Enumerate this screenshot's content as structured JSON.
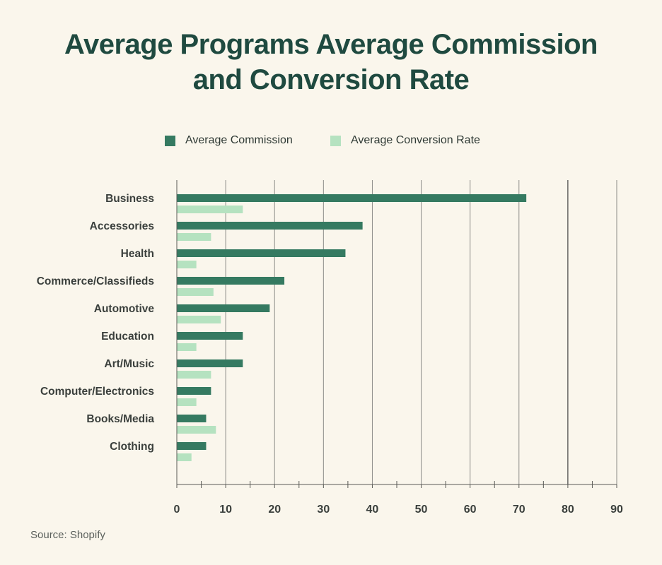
{
  "title_lines": [
    "Average Programs Average Commission",
    "and Conversion Rate"
  ],
  "source": "Source: Shopify",
  "legend": [
    {
      "label": "Average Commission",
      "color": "#357a61"
    },
    {
      "label": "Average Conversion Rate",
      "color": "#b5e2c0"
    }
  ],
  "chart_data": {
    "type": "bar",
    "orientation": "horizontal",
    "title": "Average Programs Average Commission and Conversion Rate",
    "categories": [
      "Business",
      "Accessories",
      "Health",
      "Commerce/Classifieds",
      "Automotive",
      "Education",
      "Art/Music",
      "Computer/Electronics",
      "Books/Media",
      "Clothing"
    ],
    "series": [
      {
        "name": "Average Commission",
        "color": "#357a61",
        "values": [
          71.5,
          38,
          34.5,
          22,
          19,
          13.5,
          13.5,
          7,
          6,
          6
        ]
      },
      {
        "name": "Average Conversion Rate",
        "color": "#b5e2c0",
        "values": [
          13.5,
          7,
          4,
          7.5,
          9,
          4,
          7,
          4,
          8,
          3
        ]
      }
    ],
    "xlim": [
      0,
      90
    ],
    "xticks": [
      0,
      10,
      20,
      30,
      40,
      50,
      60,
      70,
      80,
      90
    ],
    "grid": true,
    "legend_position": "top"
  }
}
